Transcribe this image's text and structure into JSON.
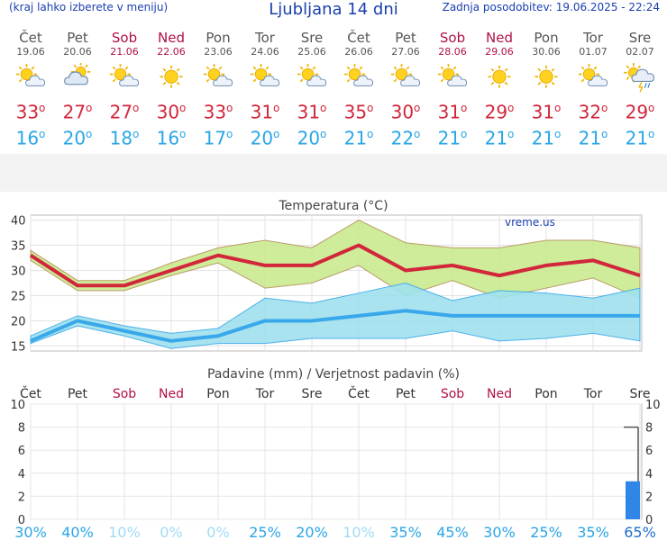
{
  "header": {
    "left_note": "(kraj lahko izberete v meniju)",
    "title": "Ljubljana 14 dni",
    "updated": "Zadnja posodobitev: 19.06.2025 - 22:24"
  },
  "days": [
    {
      "name": "Čet",
      "date": "19.06",
      "weekend": false,
      "icon": "sun-cloud-icon",
      "tmax": "33",
      "tmin": "16"
    },
    {
      "name": "Pet",
      "date": "20.06",
      "weekend": false,
      "icon": "cloud-sun-icon",
      "tmax": "27",
      "tmin": "20"
    },
    {
      "name": "Sob",
      "date": "21.06",
      "weekend": true,
      "icon": "sun-cloud-icon",
      "tmax": "27",
      "tmin": "18"
    },
    {
      "name": "Ned",
      "date": "22.06",
      "weekend": true,
      "icon": "sun-icon",
      "tmax": "30",
      "tmin": "16"
    },
    {
      "name": "Pon",
      "date": "23.06",
      "weekend": false,
      "icon": "sun-cloud-icon",
      "tmax": "33",
      "tmin": "17"
    },
    {
      "name": "Tor",
      "date": "24.06",
      "weekend": false,
      "icon": "sun-cloud-icon",
      "tmax": "31",
      "tmin": "20"
    },
    {
      "name": "Sre",
      "date": "25.06",
      "weekend": false,
      "icon": "sun-cloud-icon",
      "tmax": "31",
      "tmin": "20"
    },
    {
      "name": "Čet",
      "date": "26.06",
      "weekend": false,
      "icon": "sun-cloud-icon",
      "tmax": "35",
      "tmin": "21"
    },
    {
      "name": "Pet",
      "date": "27.06",
      "weekend": false,
      "icon": "sun-cloud-icon",
      "tmax": "30",
      "tmin": "22"
    },
    {
      "name": "Sob",
      "date": "28.06",
      "weekend": true,
      "icon": "sun-cloud-icon",
      "tmax": "31",
      "tmin": "21"
    },
    {
      "name": "Ned",
      "date": "29.06",
      "weekend": true,
      "icon": "sun-icon",
      "tmax": "29",
      "tmin": "21"
    },
    {
      "name": "Pon",
      "date": "30.06",
      "weekend": false,
      "icon": "sun-icon",
      "tmax": "31",
      "tmin": "21"
    },
    {
      "name": "Tor",
      "date": "01.07",
      "weekend": false,
      "icon": "sun-cloud-icon",
      "tmax": "32",
      "tmin": "21"
    },
    {
      "name": "Sre",
      "date": "02.07",
      "weekend": false,
      "icon": "rain-thunder-icon",
      "tmax": "29",
      "tmin": "21"
    }
  ],
  "degree_symbol": "o",
  "colors": {
    "max_line": "#d2263b",
    "min_line": "#39a8ea",
    "max_band": "#c9ea8f",
    "min_band": "#9fe1ee",
    "precip_bar": "#2f86e6",
    "weekend": "#b0104a"
  },
  "chart_data": [
    {
      "type": "line",
      "title": "Temperatura (°C)",
      "watermark": "vreme.us",
      "categories": [
        "19.06",
        "20.06",
        "21.06",
        "22.06",
        "23.06",
        "24.06",
        "25.06",
        "26.06",
        "27.06",
        "28.06",
        "29.06",
        "30.06",
        "01.07",
        "02.07"
      ],
      "ylim": [
        14,
        41
      ],
      "yticks": [
        15,
        20,
        25,
        30,
        35,
        40
      ],
      "grid": true,
      "series": [
        {
          "kind": "max_mean",
          "values": [
            33,
            27,
            27,
            30,
            33,
            31,
            31,
            35,
            30,
            31,
            29,
            31,
            32,
            29
          ]
        },
        {
          "kind": "max_upper",
          "values": [
            34,
            28,
            28,
            31.5,
            34.5,
            36,
            34.5,
            40,
            35.5,
            34.5,
            34.5,
            36,
            36,
            34.5
          ]
        },
        {
          "kind": "max_lower",
          "values": [
            32,
            26,
            26,
            29,
            31.5,
            26.5,
            27.5,
            31,
            25,
            28,
            24.5,
            26.5,
            28.5,
            24.5
          ]
        },
        {
          "kind": "min_mean",
          "values": [
            16,
            20,
            18,
            16,
            17,
            20,
            20,
            21,
            22,
            21,
            21,
            21,
            21,
            21
          ]
        },
        {
          "kind": "min_upper",
          "values": [
            17,
            21,
            19,
            17.5,
            18.5,
            24.5,
            23.5,
            25.5,
            27.5,
            24,
            26,
            25.5,
            24.5,
            26.5
          ]
        },
        {
          "kind": "min_lower",
          "values": [
            15.5,
            19,
            17,
            14.5,
            15.5,
            15.5,
            16.5,
            16.5,
            16.5,
            18,
            16,
            16.5,
            17.5,
            16
          ]
        }
      ]
    },
    {
      "type": "bar",
      "title": "Padavine (mm) / Verjetnost padavin (%)",
      "categories": [
        "Čet",
        "Pet",
        "Sob",
        "Ned",
        "Pon",
        "Tor",
        "Sre",
        "Čet",
        "Pet",
        "Sob",
        "Ned",
        "Pon",
        "Tor",
        "Sre"
      ],
      "ylim": [
        0,
        10
      ],
      "yticks": [
        0,
        2,
        4,
        6,
        8,
        10
      ],
      "values": [
        0,
        0,
        0,
        0,
        0,
        0,
        0,
        0,
        0,
        0,
        0,
        0,
        0,
        3.3
      ],
      "range_high": [
        0,
        0,
        0,
        0,
        0,
        0,
        0,
        0,
        0,
        0,
        0,
        0,
        0,
        8
      ],
      "probability": [
        "30%",
        "40%",
        "10%",
        "0%",
        "0%",
        "25%",
        "20%",
        "10%",
        "35%",
        "45%",
        "30%",
        "25%",
        "35%",
        "65%"
      ]
    }
  ]
}
